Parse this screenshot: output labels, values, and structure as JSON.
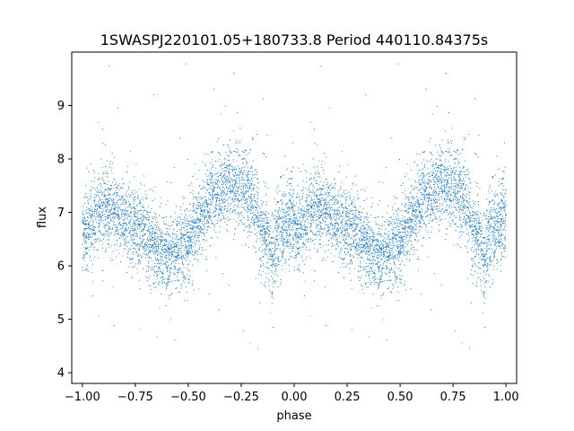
{
  "chart_data": {
    "type": "scatter",
    "title": "1SWASPJ220101.05+180733.8 Period 440110.84375s",
    "xlabel": "phase",
    "ylabel": "flux",
    "xlim": [
      -1.05,
      1.05
    ],
    "ylim": [
      3.8,
      10.0
    ],
    "x_ticks": [
      -1.0,
      -0.75,
      -0.5,
      -0.25,
      0.0,
      0.25,
      0.5,
      0.75,
      1.0
    ],
    "x_tick_labels": [
      "−1.00",
      "−0.75",
      "−0.50",
      "−0.25",
      "0.00",
      "0.25",
      "0.50",
      "0.75",
      "1.00"
    ],
    "y_ticks": [
      4,
      5,
      6,
      7,
      8,
      9
    ],
    "y_tick_labels": [
      "4",
      "5",
      "6",
      "7",
      "8",
      "9"
    ],
    "grid": false,
    "marker_color": "#1f77b4",
    "series": [
      {
        "x": [
          0.0,
          0.05,
          0.1,
          0.15,
          0.2,
          0.25,
          0.3,
          0.35,
          0.4,
          0.45,
          0.5,
          0.55,
          0.6,
          0.65,
          0.7,
          0.75,
          0.8,
          0.85,
          0.9,
          0.95,
          1.0
        ],
        "y": [
          6.6,
          6.8,
          7.1,
          7.05,
          6.9,
          6.7,
          6.6,
          6.3,
          6.2,
          6.25,
          6.5,
          6.8,
          7.2,
          7.4,
          7.5,
          7.55,
          7.3,
          6.6,
          6.3,
          6.7,
          6.9
        ],
        "spread": [
          0.35,
          0.35,
          0.4,
          0.35,
          0.35,
          0.35,
          0.4,
          0.35,
          0.3,
          0.35,
          0.4,
          0.35,
          0.35,
          0.35,
          0.35,
          0.35,
          0.45,
          0.4,
          0.4,
          0.4,
          0.4
        ]
      }
    ]
  }
}
